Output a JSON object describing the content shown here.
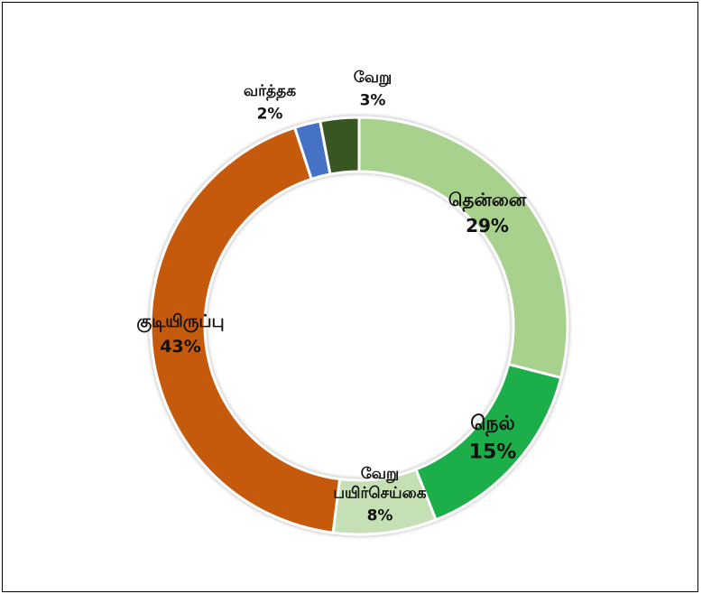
{
  "chart_data": {
    "type": "pie",
    "subtype": "doughnut",
    "title": "",
    "start": "12 o'clock",
    "direction": "clockwise",
    "slices": [
      {
        "label": "தென்னை",
        "value": 29,
        "value_label": "29%",
        "color": "#a9d18e"
      },
      {
        "label": "நெல்",
        "value": 15,
        "value_label": "15%",
        "color": "#1fae4a"
      },
      {
        "label": "வேறு பயிர்செய்கை",
        "label_lines": [
          "வேறு",
          "பயிர்செய்கை"
        ],
        "value": 8,
        "value_label": "8%",
        "color": "#c5e0b4"
      },
      {
        "label": "குடியிருப்பு",
        "value": 43,
        "value_label": "43%",
        "color": "#c55a11"
      },
      {
        "label": "வர்த்தக",
        "value": 2,
        "value_label": "2%",
        "color": "#4472c4"
      },
      {
        "label": "வேறு",
        "value": 3,
        "value_label": "3%",
        "color": "#385723"
      }
    ]
  }
}
